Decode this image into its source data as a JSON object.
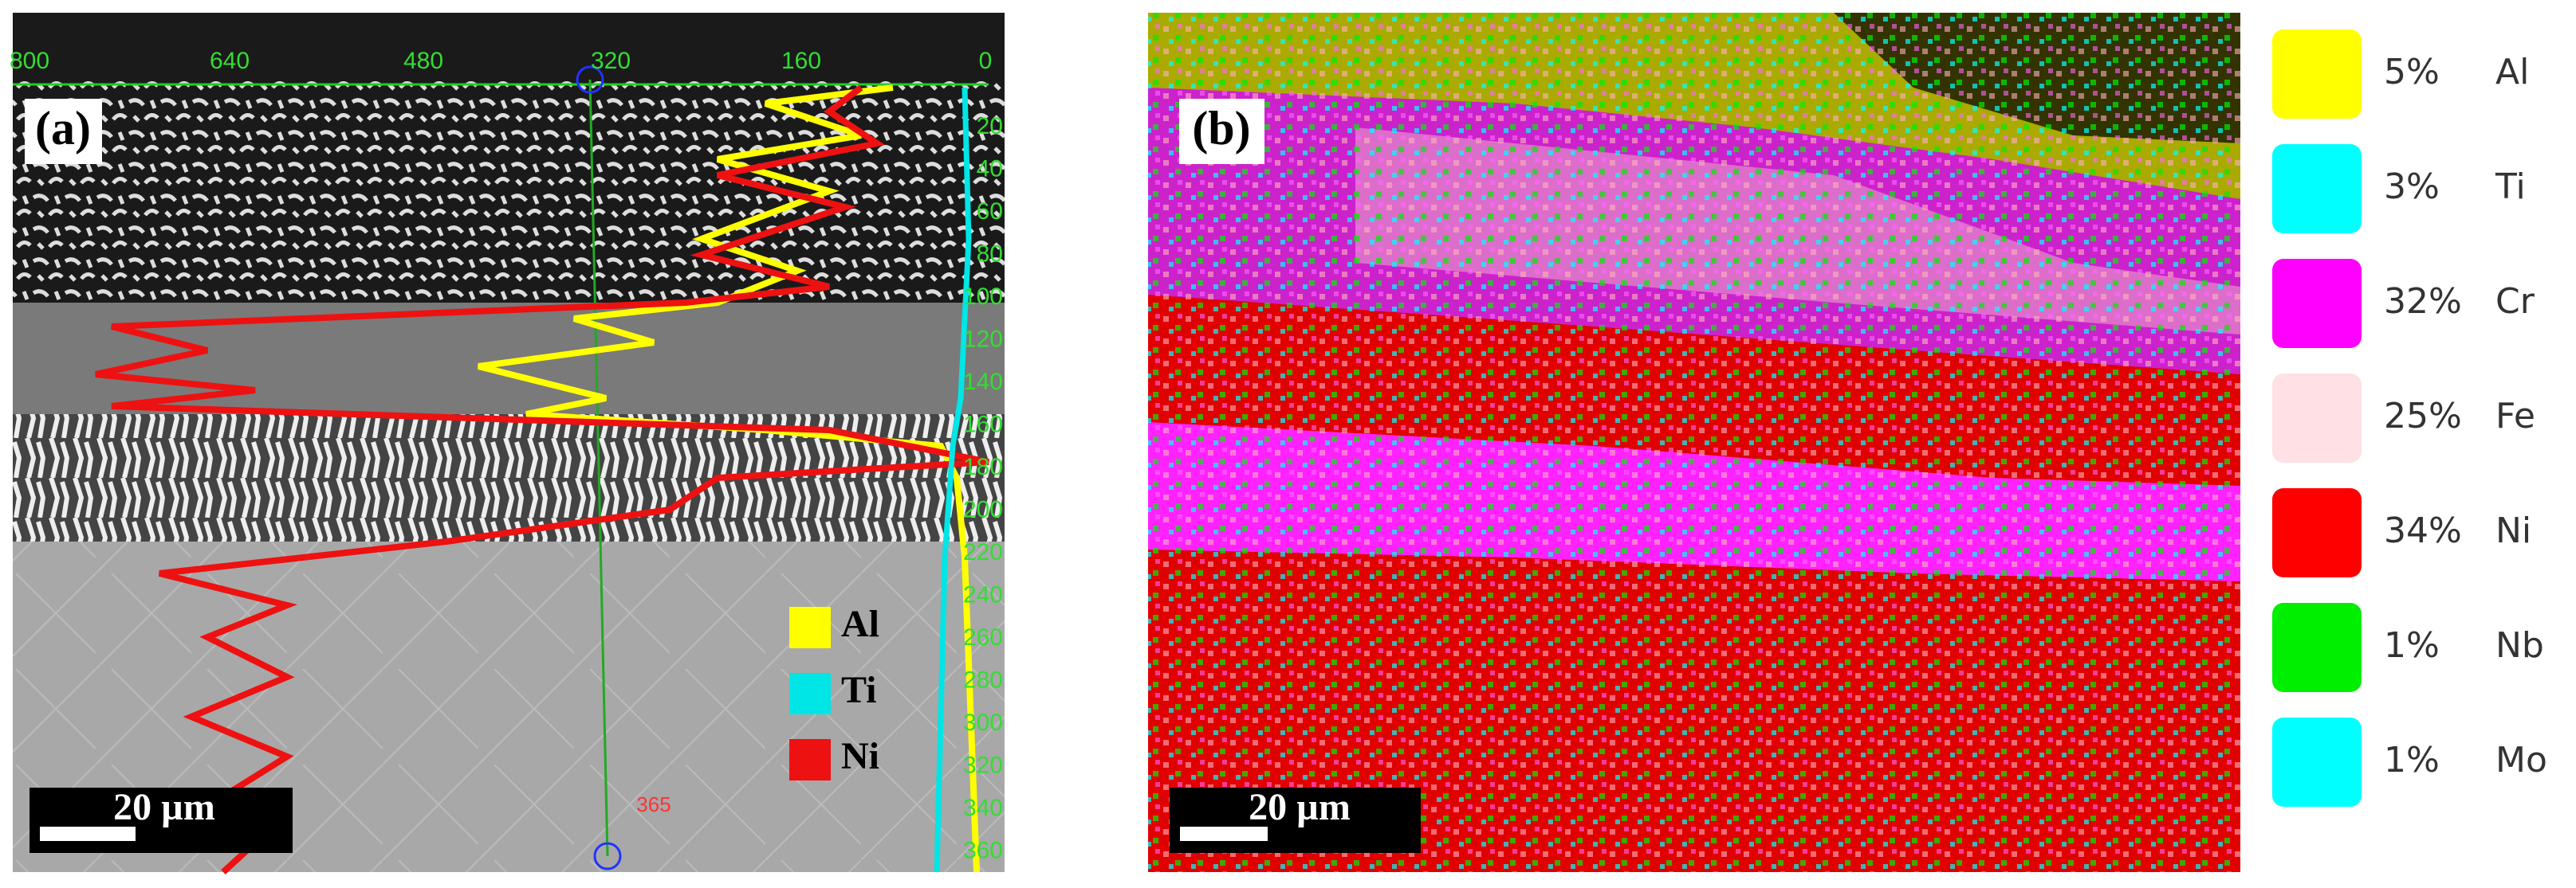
{
  "panel_a": {
    "label": "(a)",
    "scale_bar": "20 µm",
    "top_axis": [
      "800",
      "640",
      "480",
      "320",
      "160",
      "0"
    ],
    "right_axis": [
      "20",
      "40",
      "60",
      "80",
      "100",
      "120",
      "140",
      "160",
      "180",
      "200",
      "220",
      "240",
      "260",
      "280",
      "300",
      "320",
      "340",
      "360"
    ],
    "marker": "365",
    "legend": [
      {
        "name": "Al",
        "color": "#ffff00"
      },
      {
        "name": "Ti",
        "color": "#00e5e5"
      },
      {
        "name": "Ni",
        "color": "#ee1111"
      }
    ]
  },
  "panel_b": {
    "label": "(b)",
    "scale_bar": "20 µm"
  },
  "legend": [
    {
      "percent": "5%",
      "element": "Al",
      "color": "#ffff00"
    },
    {
      "percent": "3%",
      "element": "Ti",
      "color": "#00ffff"
    },
    {
      "percent": "32%",
      "element": "Cr",
      "color": "#ff00ff"
    },
    {
      "percent": "25%",
      "element": "Fe",
      "color": "#ffe0e4"
    },
    {
      "percent": "34%",
      "element": "Ni",
      "color": "#ff0000"
    },
    {
      "percent": "1%",
      "element": "Nb",
      "color": "#00ee00"
    },
    {
      "percent": "1%",
      "element": "Mo",
      "color": "#00ffff"
    }
  ]
}
